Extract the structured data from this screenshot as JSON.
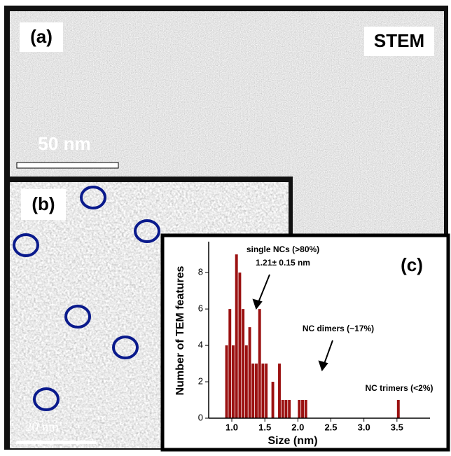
{
  "panels": {
    "a": {
      "label": "(a)",
      "mode": "STEM",
      "scale": "50 nm"
    },
    "b": {
      "label": "(b)",
      "scale": "20 nm"
    }
  },
  "chart_data": {
    "type": "histogram",
    "panel_label": "(c)",
    "xlabel": "Size (nm)",
    "ylabel": "Number of TEM features",
    "color": "#9b1111",
    "bins": [
      0.9,
      0.95,
      1.0,
      1.05,
      1.1,
      1.15,
      1.2,
      1.25,
      1.3,
      1.35,
      1.4,
      1.45,
      1.5,
      1.55,
      1.6,
      1.65,
      1.7,
      1.75,
      1.8,
      1.85,
      1.9,
      1.95,
      2.0,
      2.05,
      2.1,
      2.15,
      2.2,
      2.25,
      2.3,
      2.35,
      2.4,
      2.45,
      2.5,
      2.55,
      2.6,
      2.65,
      2.7,
      2.75,
      2.8,
      2.85,
      2.9,
      2.95,
      3.0,
      3.05,
      3.1,
      3.15,
      3.2,
      3.25,
      3.3,
      3.35,
      3.4,
      3.45,
      3.5,
      3.55
    ],
    "counts": [
      4,
      6,
      4,
      9,
      8,
      6,
      4,
      5,
      3,
      3,
      6,
      3,
      3,
      0,
      2,
      0,
      3,
      1,
      1,
      1,
      0,
      0,
      1,
      1,
      1,
      0,
      0,
      0,
      0,
      0,
      0,
      0,
      0,
      0,
      0,
      0,
      0,
      0,
      0,
      0,
      0,
      0,
      0,
      0,
      0,
      0,
      0,
      0,
      0,
      0,
      0,
      0,
      1
    ],
    "xlim": [
      0.65,
      4.0
    ],
    "ylim": [
      0,
      9.7
    ],
    "xticks": [
      {
        "value": 1.0,
        "label": "1.0"
      },
      1.5,
      {
        "value": 2.0,
        "label": "2.0"
      },
      2.5,
      {
        "value": 3.0,
        "label": "3.0"
      },
      3.5
    ],
    "yticks": [
      0,
      2,
      4,
      6,
      8
    ],
    "annotations": [
      "single NCs (>80%)",
      "1.21± 0.15 nm",
      "NC dimers (~17%)",
      "NC trimers (<2%)"
    ]
  }
}
